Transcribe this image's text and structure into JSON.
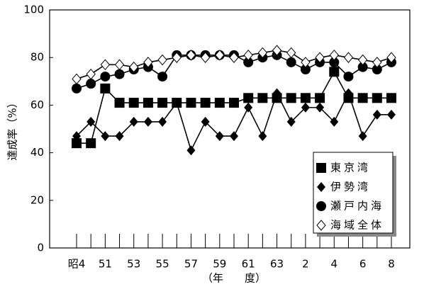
{
  "chart_data": {
    "type": "line",
    "y_label": "達成率（%）",
    "x_label": "（年　　度）",
    "categories": [
      "昭4",
      null,
      "51",
      null,
      "53",
      null,
      "55",
      null,
      "57",
      null,
      "59",
      null,
      "61",
      null,
      "63",
      null,
      "2",
      null,
      "4",
      null,
      "6",
      null,
      "8"
    ],
    "ylim": [
      0,
      100
    ],
    "yticks": [
      0,
      20,
      40,
      60,
      80,
      100
    ],
    "grid": false,
    "legend": "lower-right",
    "series": [
      {
        "name": "東京湾",
        "color": "#000000",
        "marker": "square",
        "values": [
          44,
          44,
          67,
          61,
          61,
          61,
          61,
          61,
          61,
          61,
          61,
          61,
          63,
          63,
          63,
          63,
          63,
          63,
          74,
          63,
          63,
          63,
          63
        ]
      },
      {
        "name": "伊勢湾",
        "color": "#000000",
        "marker": "diamond",
        "values": [
          47,
          53,
          47,
          47,
          53,
          53,
          53,
          61,
          41,
          53,
          47,
          47,
          59,
          47,
          65,
          53,
          59,
          59,
          53,
          65,
          47,
          56,
          56
        ]
      },
      {
        "name": "瀬戸内海",
        "color": "#000000",
        "marker": "circle",
        "values": [
          67,
          69,
          72,
          73,
          75,
          76,
          72,
          81,
          81,
          81,
          81,
          81,
          78,
          80,
          81,
          78,
          75,
          78,
          78,
          72,
          76,
          75,
          78
        ]
      },
      {
        "name": "海域全体",
        "color": "#000000",
        "marker": "open-diamond",
        "values": [
          71,
          73,
          77,
          77,
          76,
          78,
          79,
          80,
          81,
          80,
          81,
          80,
          81,
          82,
          83,
          82,
          78,
          80,
          81,
          80,
          79,
          78,
          80
        ]
      }
    ]
  }
}
